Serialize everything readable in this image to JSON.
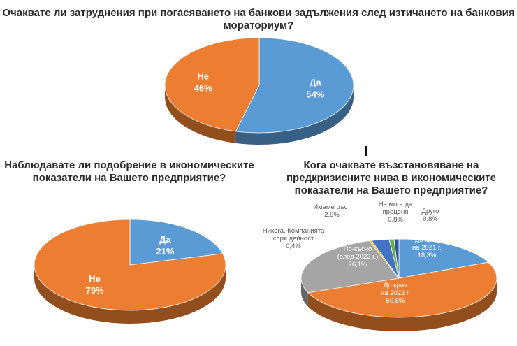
{
  "titles": {
    "chart1": "Очаквате ли затруднения при погасяването на банкови задължения след изтичането на банковия мораториум?",
    "chart2": "Наблюдавате ли подобрение в икономическите показатели на Вашето предприятие?",
    "chart3": "Кога очаквате възстановяване на предкризисните нива в икономическите показатели на Вашето предприятие?"
  },
  "colors": {
    "blue": "#5b9bd5",
    "orange": "#ed7d31",
    "gray": "#a5a5a5",
    "dark_blue": "#4472c4",
    "green": "#70ad47",
    "yellow": "#ffc000"
  },
  "chart_data": [
    {
      "type": "pie",
      "title": "Очаквате ли затруднения при погасяването на банкови задължения след изтичането на банковия мораториум?",
      "slices": [
        {
          "label": "Да",
          "value": 54,
          "value_label": "54%",
          "color": "#5b9bd5"
        },
        {
          "label": "Не",
          "value": 46,
          "value_label": "46%",
          "color": "#ed7d31"
        }
      ]
    },
    {
      "type": "pie",
      "title": "Наблюдавате ли подобрение в икономическите показатели на Вашето предприятие?",
      "slices": [
        {
          "label": "Да",
          "value": 21,
          "value_label": "21%",
          "color": "#5b9bd5"
        },
        {
          "label": "Не",
          "value": 79,
          "value_label": "79%",
          "color": "#ed7d31"
        }
      ]
    },
    {
      "type": "pie",
      "title": "Кога очаквате възстановяване на предкризисните нива в икономическите показатели на Вашето предприятие?",
      "slices": [
        {
          "label": "До края на 2021 г.",
          "value": 18.3,
          "value_label": "18,3%",
          "color": "#5b9bd5"
        },
        {
          "label": "До края на 2022 г.",
          "value": 50.6,
          "value_label": "50,6%",
          "color": "#ed7d31"
        },
        {
          "label": "По-късно (след 2022 г.)",
          "value": 26.1,
          "value_label": "26,1%",
          "color": "#a5a5a5"
        },
        {
          "label": "Никога. Компанията спря дейност",
          "value": 0.4,
          "value_label": "0,4%",
          "color": "#ffc000"
        },
        {
          "label": "Имаме ръст",
          "value": 2.9,
          "value_label": "2,9%",
          "color": "#4472c4"
        },
        {
          "label": "Не мога да преценя",
          "value": 0.8,
          "value_label": "0,8%",
          "color": "#70ad47"
        },
        {
          "label": "Друго",
          "value": 0.8,
          "value_label": "0,8%",
          "color": "#2f5597"
        }
      ]
    }
  ]
}
